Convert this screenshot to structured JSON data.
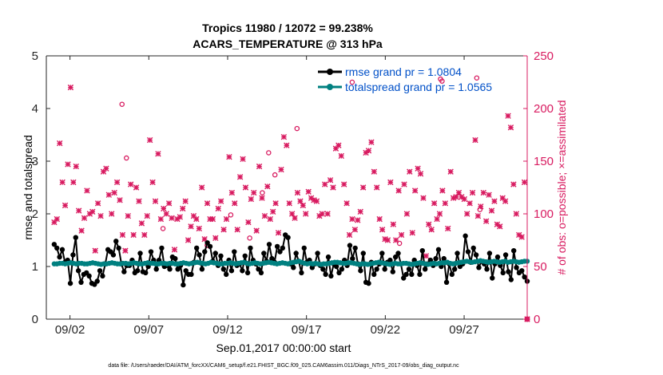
{
  "chart_data": {
    "type": "line",
    "title": "Tropics 11980 / 12072 = 99.238%",
    "subtitle": "ACARS_TEMPERATURE @ 313 hPa",
    "xlabel": "Sep.01,2017 00:00:00 start",
    "ylabel_left": "rmse and totalspread",
    "ylabel_right": "# of obs: o=possible; ×=assimilated",
    "footer": "data file: /Users/raeder/DAI/ATM_forcXX/CAM6_setup/f.e21.FHIST_BGC.f09_025.CAM6assim.011/Diags_NTrS_2017-09/obs_diag_output.nc",
    "xlim": [
      0.5,
      31.0
    ],
    "ylim_left": [
      0,
      5
    ],
    "ylim_right": [
      0,
      250
    ],
    "x_ticks": [
      2,
      7,
      12,
      17,
      22,
      27
    ],
    "x_tick_labels": [
      "09/02",
      "09/07",
      "09/12",
      "09/17",
      "09/22",
      "09/27"
    ],
    "y_ticks_left": [
      "0",
      "1",
      "2",
      "3",
      "4",
      "5"
    ],
    "y_ticks_right": [
      "0",
      "50",
      "100",
      "150",
      "200",
      "250"
    ],
    "colors": {
      "rmse": "#000000",
      "spread": "#008080",
      "obs": "#d81b60",
      "right_axis": "#d81b60",
      "legend_text": "#0050c8"
    },
    "grid": false,
    "legend_position": "top-right",
    "series": [
      {
        "name": "rmse grand pr = 1.0804",
        "key": "rmse",
        "y": [
          1.42,
          1.35,
          1.18,
          1.32,
          1.08,
          1.12,
          0.68,
          1.22,
          1.55,
          0.92,
          0.7,
          0.85,
          0.88,
          0.82,
          0.68,
          0.66,
          0.72,
          0.92,
          0.82,
          1.05,
          1.32,
          1.28,
          1.22,
          1.48,
          1.35,
          1.05,
          0.9,
          1.02,
          1.02,
          1.12,
          0.88,
          0.92,
          1.25,
          0.9,
          0.88,
          1.0,
          1.28,
          1.12,
          0.95,
          1.12,
          1.35,
          1.0,
          1.02,
          0.95,
          1.18,
          1.15,
          0.95,
          1.02,
          0.65,
          0.92,
          0.85,
          0.85,
          1.08,
          1.35,
          1.22,
          0.95,
          1.28,
          1.45,
          1.38,
          1.1,
          1.25,
          1.02,
          1.2,
          0.95,
          0.85,
          1.12,
          0.92,
          1.28,
          1.02,
          1.05,
          0.92,
          1.2,
          0.88,
          1.35,
          1.12,
          1.05,
          0.95,
          0.88,
          1.25,
          1.1,
          1.42,
          1.15,
          1.08,
          1.38,
          1.28,
          1.35,
          1.6,
          1.55,
          1.05,
          0.98,
          1.25,
          1.1,
          0.88,
          1.35,
          1.08,
          1.12,
          0.98,
          1.05,
          1.25,
          1.02,
          0.95,
          0.85,
          1.18,
          0.82,
          1.05,
          1.0,
          0.88,
          0.95,
          1.12,
          1.02,
          1.4,
          1.15,
          1.35,
          1.05,
          0.92,
          1.25,
          0.7,
          0.68,
          1.08,
          0.85,
          0.95,
          1.05,
          1.25,
          0.95,
          1.08,
          1.12,
          0.9,
          1.18,
          1.25,
          1.05,
          0.78,
          0.85,
          0.95,
          0.85,
          1.12,
          1.02,
          0.85,
          1.3,
          0.95,
          1.05,
          1.12,
          1.02,
          1.15,
          1.32,
          1.0,
          1.15,
          0.7,
          1.05,
          0.85,
          0.95,
          1.25,
          1.0,
          1.05,
          1.58,
          1.28,
          1.08,
          1.35,
          1.22,
          0.98,
          1.1,
          1.05,
          0.95,
          1.25,
          0.78,
          1.05,
          1.18,
          1.02,
          0.88,
          1.22,
          0.9,
          0.75,
          1.3,
          0.98,
          0.88,
          0.92,
          0.8,
          0.72
        ]
      },
      {
        "name": "totalspread grand pr = 1.0565",
        "key": "spread",
        "y": [
          1.05,
          1.05,
          1.06,
          1.06,
          1.05,
          1.06,
          1.07,
          1.06,
          1.05,
          1.06,
          1.06,
          1.05,
          1.05,
          1.06,
          1.07,
          1.06,
          1.05,
          1.04,
          1.05,
          1.05,
          1.06,
          1.07,
          1.06,
          1.05,
          1.05,
          1.06,
          1.06,
          1.05,
          1.06,
          1.07,
          1.06,
          1.05,
          1.05,
          1.06,
          1.07,
          1.06,
          1.06,
          1.05,
          1.05,
          1.06,
          1.06,
          1.05,
          1.06,
          1.06,
          1.05,
          1.05,
          1.06,
          1.07,
          1.06,
          1.05,
          1.06,
          1.07,
          1.08,
          1.07,
          1.06,
          1.05,
          1.06,
          1.08,
          1.07,
          1.06,
          1.05,
          1.05,
          1.06,
          1.06,
          1.07,
          1.06,
          1.05,
          1.06,
          1.07,
          1.08,
          1.06,
          1.05,
          1.06,
          1.07,
          1.06,
          1.05,
          1.06,
          1.07,
          1.08,
          1.07,
          1.06,
          1.05,
          1.06,
          1.07,
          1.06,
          1.05,
          1.07,
          1.08,
          1.09,
          1.1,
          1.08,
          1.06,
          1.05,
          1.06,
          1.05,
          1.06,
          1.05,
          1.04,
          1.05,
          1.05,
          1.06,
          1.07,
          1.08,
          1.08,
          1.07,
          1.06,
          1.06,
          1.07,
          1.07,
          1.06,
          1.05,
          1.04,
          1.05,
          1.05,
          1.04,
          1.05,
          1.06,
          1.07,
          1.08,
          1.07,
          1.06,
          1.05,
          1.04,
          1.05,
          1.06,
          1.05,
          1.05,
          1.06,
          1.06,
          1.05,
          1.04,
          1.05,
          1.06,
          1.07,
          1.06,
          1.05,
          1.04,
          1.05,
          1.06,
          1.05,
          1.06,
          1.07,
          1.07,
          1.08,
          1.06,
          1.05,
          1.06,
          1.07,
          1.08,
          1.09,
          1.1,
          1.09,
          1.08,
          1.09,
          1.1,
          1.11,
          1.1,
          1.09,
          1.08,
          1.09,
          1.1,
          1.09,
          1.08,
          1.09,
          1.1,
          1.08,
          1.09,
          1.1,
          1.09,
          1.08,
          1.09,
          1.1,
          1.1
        ]
      },
      {
        "name": "obs assimilated",
        "key": "obs",
        "y": [
          92,
          95,
          167,
          130,
          108,
          147,
          220,
          130,
          145,
          103,
          84,
          96,
          122,
          100,
          102,
          65,
          110,
          98,
          140,
          143,
          118,
          100,
          120,
          130,
          113,
          80,
          65,
          98,
          128,
          80,
          125,
          112,
          91,
          80,
          98,
          170,
          130,
          112,
          157,
          95,
          105,
          100,
          110,
          96,
          66,
          95,
          97,
          105,
          112,
          75,
          88,
          98,
          95,
          86,
          125,
          76,
          110,
          95,
          95,
          77,
          105,
          112,
          85,
          95,
          154,
          120,
          110,
          85,
          135,
          152,
          125,
          92,
          114,
          120,
          84,
          145,
          115,
          98,
          126,
          95,
          102,
          110,
          82,
          142,
          173,
          165,
          110,
          100,
          96,
          120,
          112,
          108,
          100,
          121,
          115,
          113,
          112,
          98,
          100,
          128,
          100,
          132,
          125,
          162,
          165,
          155,
          128,
          110,
          80,
          95,
          85,
          94,
          102,
          125,
          158,
          160,
          168,
          140,
          125,
          95,
          85,
          76,
          75,
          130,
          90,
          75,
          122,
          80,
          128,
          100,
          140,
          82,
          122,
          143,
          138,
          115,
          60,
          90,
          85,
          110,
          95,
          100,
          122,
          110,
          86,
          140,
          115,
          116,
          120,
          116,
          114,
          100,
          110,
          120,
          170,
          98,
          107,
          120,
          93,
          118,
          103,
          112,
          90,
          88,
          115,
          112,
          193,
          182,
          128,
          100,
          80,
          78,
          130,
          0
        ]
      },
      {
        "name": "obs possible",
        "key": "possible",
        "points": [
          [
            5.3,
            204
          ],
          [
            10.7,
            70
          ],
          [
            5.58,
            153
          ],
          [
            7.9,
            86
          ],
          [
            12.2,
            99
          ],
          [
            13.4,
            77
          ],
          [
            14.2,
            120
          ],
          [
            14.6,
            158
          ],
          [
            15.0,
            137
          ],
          [
            16.4,
            181
          ],
          [
            19.9,
            225
          ],
          [
            22.9,
            72
          ],
          [
            25.5,
            228
          ],
          [
            28.0,
            104
          ],
          [
            27.8,
            229
          ],
          [
            25.6,
            226
          ]
        ]
      }
    ]
  }
}
